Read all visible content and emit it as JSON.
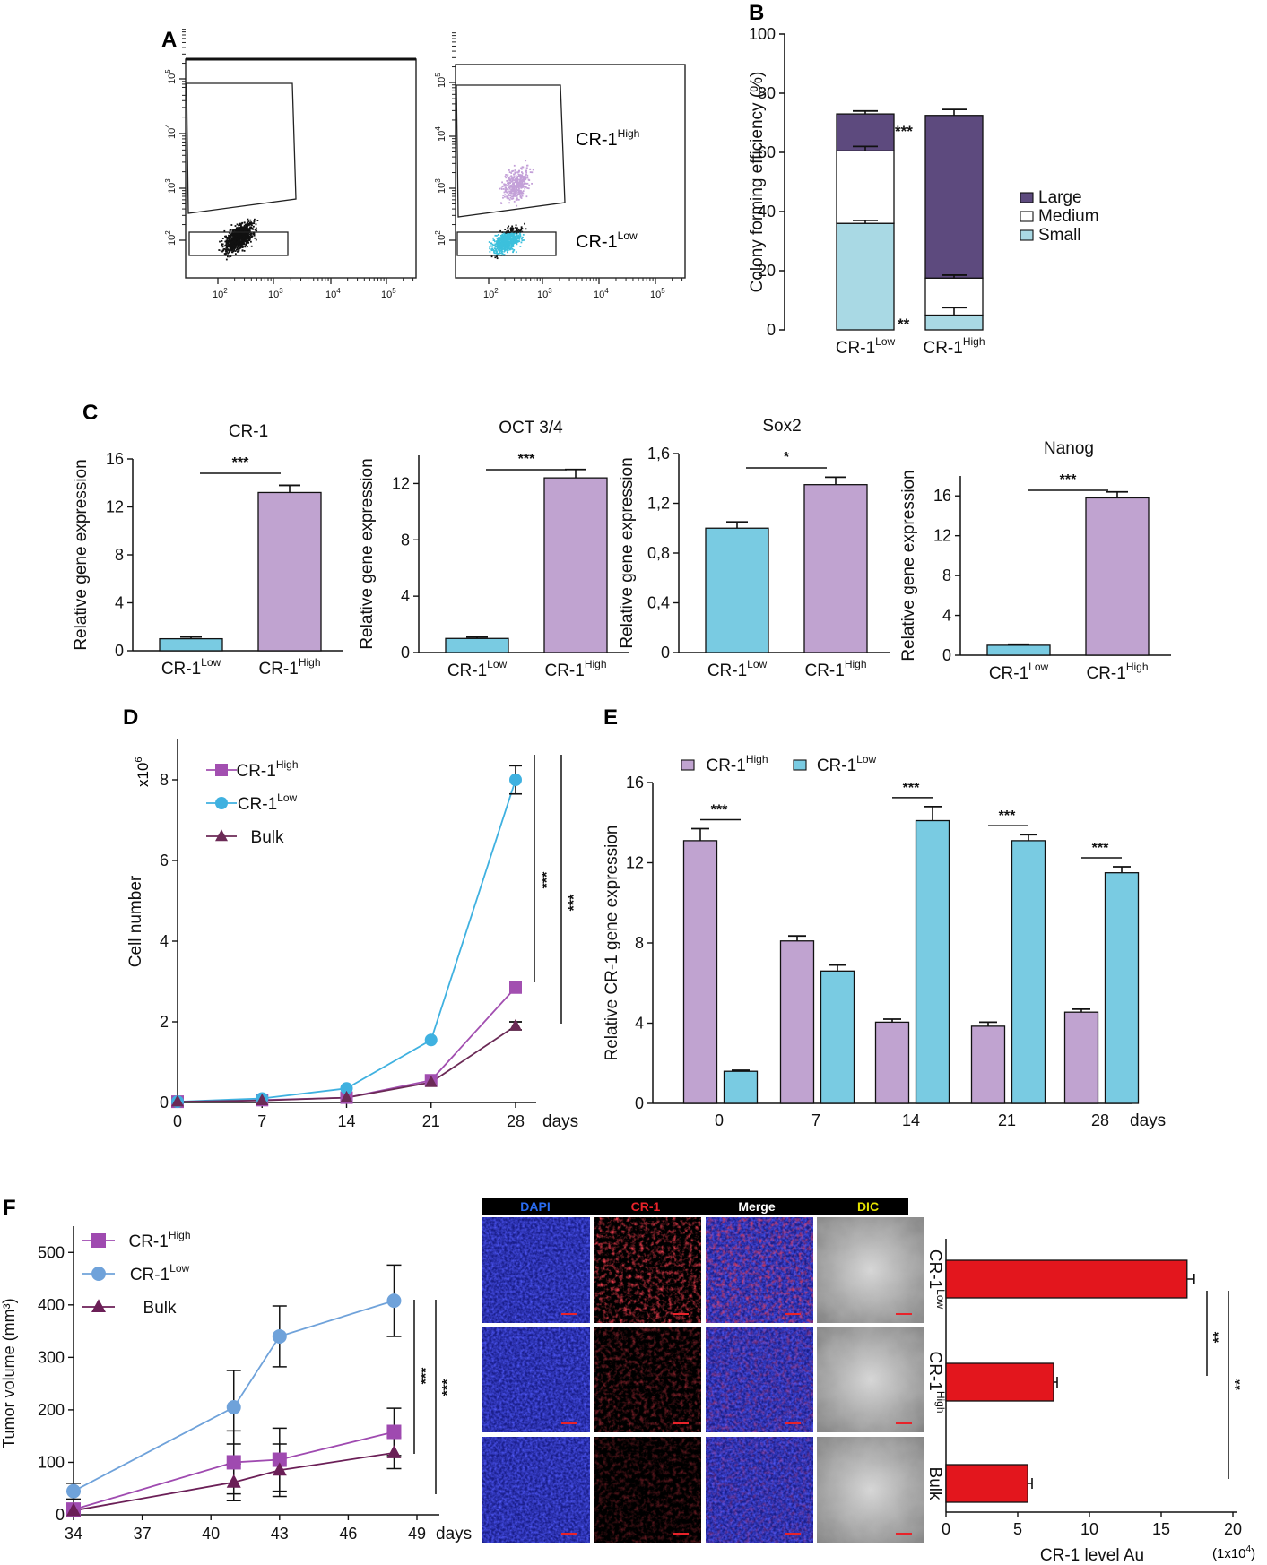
{
  "colors": {
    "low": "#79cbe2",
    "high": "#c0a3d0",
    "large": "#5d4a7e",
    "medium": "#ffffff",
    "small": "#a9d9e4",
    "line_high": "#a24fb0",
    "line_low": "#3fb1e0",
    "line_bulk": "#6b2a56",
    "f_low": "#6fa2da",
    "f_high": "#9f4ab0",
    "f_bulk": "#6b1f57",
    "red_bar": "#e3161d",
    "dapi": "#2a2fcf",
    "cr1": "#e0171d",
    "dic": "#e4e200"
  },
  "panels": {
    "A": {
      "label": "A",
      "gate_high": "CR-1",
      "gate_high_sup": "High",
      "gate_low": "CR-1",
      "gate_low_sup": "Low",
      "x_ticks": [
        "10",
        "10",
        "10",
        "10"
      ],
      "x_exps": [
        "2",
        "3",
        "4",
        "5"
      ],
      "y_ticks": [
        "10",
        "10",
        "10",
        "10"
      ],
      "y_exps": [
        "2",
        "3",
        "4",
        "5"
      ]
    },
    "B": {
      "label": "B"
    },
    "C": {
      "label": "C"
    },
    "D": {
      "label": "D",
      "multiplier": "x10",
      "multiplier_exp": "6"
    },
    "E": {
      "label": "E"
    },
    "F": {
      "label": "F",
      "image_headers": [
        "DAPI",
        "CR-1",
        "Merge",
        "DIC"
      ],
      "bar_multiplier": "(1x10",
      "bar_multiplier_exp": "4",
      "bar_multiplier_close": ")"
    }
  },
  "chart_data": [
    {
      "id": "B",
      "type": "bar",
      "stacked": true,
      "categories": [
        "CR-1Low",
        "CR-1High"
      ],
      "series": [
        {
          "name": "Small",
          "values": [
            36,
            5
          ]
        },
        {
          "name": "Medium",
          "values": [
            24.5,
            12.5
          ]
        },
        {
          "name": "Large",
          "values": [
            12.5,
            55
          ]
        }
      ],
      "error_tops": [
        [
          37,
          7.5
        ],
        [
          62,
          18.5
        ],
        [
          74,
          74.5
        ]
      ],
      "significance": [
        {
          "text": "***",
          "position": "right of CR-1Low Large"
        },
        {
          "text": "**",
          "position": "right of CR-1Low Small"
        }
      ],
      "ylabel": "Colony forming efficiency (%)",
      "ylim": [
        0,
        100
      ],
      "y_ticks": [
        "0",
        "20",
        "40",
        "60",
        "80",
        "100"
      ],
      "legend": [
        "Large",
        "Medium",
        "Small"
      ]
    },
    {
      "id": "C1",
      "type": "bar",
      "title": "CR-1",
      "categories": [
        "CR-1Low",
        "CR-1High"
      ],
      "values": [
        1,
        13.2
      ],
      "errors": [
        0.15,
        0.6
      ],
      "ylim": [
        0,
        16
      ],
      "y_ticks": [
        "0",
        "4",
        "8",
        "12",
        "16"
      ],
      "ylabel": "Relative gene expression",
      "significance": "***"
    },
    {
      "id": "C2",
      "type": "bar",
      "title": "OCT 3/4",
      "categories": [
        "CR-1Low",
        "CR-1High"
      ],
      "values": [
        1,
        12.4
      ],
      "errors": [
        0.1,
        0.6
      ],
      "ylim": [
        0,
        14
      ],
      "y_ticks": [
        "0",
        "4",
        "8",
        "12"
      ],
      "ylabel": "Relative gene expression",
      "significance": "***"
    },
    {
      "id": "C3",
      "type": "bar",
      "title": "Sox2",
      "categories": [
        "CR-1Low",
        "CR-1High"
      ],
      "values": [
        1,
        1.35
      ],
      "errors": [
        0.05,
        0.06
      ],
      "ylim": [
        0,
        1.6
      ],
      "y_ticks": [
        "0",
        "0,4",
        "0,8",
        "1,2",
        "1,6"
      ],
      "ylabel": "Relative gene expression",
      "significance": "*"
    },
    {
      "id": "C4",
      "type": "bar",
      "title": "Nanog",
      "categories": [
        "CR-1Low",
        "CR-1High"
      ],
      "values": [
        1,
        15.8
      ],
      "errors": [
        0.1,
        0.6
      ],
      "ylim": [
        0,
        18
      ],
      "y_ticks": [
        "0",
        "4",
        "8",
        "12",
        "16"
      ],
      "ylabel": "Relative gene expression",
      "significance": "***"
    },
    {
      "id": "D",
      "type": "line",
      "x": [
        0,
        7,
        14,
        21,
        28
      ],
      "x_ticks": [
        "0",
        "7",
        "14",
        "21",
        "28"
      ],
      "x_unit": "days",
      "ylabel": "Cell number",
      "ylim": [
        0,
        9
      ],
      "y_ticks": [
        "0",
        "2",
        "4",
        "6",
        "8"
      ],
      "series": [
        {
          "name": "CR-1High",
          "marker": "square",
          "values": [
            0.02,
            0.06,
            0.12,
            0.55,
            2.85
          ]
        },
        {
          "name": "CR-1Low",
          "marker": "circle",
          "values": [
            0.02,
            0.1,
            0.35,
            1.55,
            8.0
          ]
        },
        {
          "name": "Bulk",
          "marker": "triangle",
          "values": [
            0.02,
            0.05,
            0.12,
            0.5,
            1.9
          ]
        }
      ],
      "errors": {
        "CR-1Low": [
          0,
          0,
          0,
          0,
          0.35
        ],
        "Bulk": [
          0,
          0,
          0,
          0,
          0.1
        ]
      },
      "significance": [
        "***",
        "***"
      ]
    },
    {
      "id": "E",
      "type": "bar",
      "categories": [
        "0",
        "7",
        "14",
        "21",
        "28"
      ],
      "x_unit": "days",
      "series": [
        {
          "name": "CR-1High",
          "values": [
            13.1,
            8.1,
            4.05,
            3.85,
            4.55
          ]
        },
        {
          "name": "CR-1Low",
          "values": [
            1.6,
            6.6,
            14.1,
            13.1,
            11.5
          ]
        }
      ],
      "errors": [
        [
          0.6,
          0.25,
          0.15,
          0.2,
          0.15
        ],
        [
          0.05,
          0.3,
          0.7,
          0.3,
          0.3
        ]
      ],
      "ylabel": "Relative CR-1 gene expression",
      "ylim": [
        0,
        16
      ],
      "y_ticks": [
        "0",
        "4",
        "8",
        "12",
        "16"
      ],
      "significance": [
        "***",
        "",
        "***",
        "***",
        "***"
      ]
    },
    {
      "id": "F1",
      "type": "line",
      "x": [
        34,
        41,
        43,
        48
      ],
      "x_ticks": [
        "34",
        "37",
        "40",
        "43",
        "46",
        "49"
      ],
      "x_unit": "days",
      "xlim": [
        34,
        50
      ],
      "ylabel": "Tumor volume (mm³)",
      "ylim": [
        0,
        550
      ],
      "y_ticks": [
        "0",
        "100",
        "200",
        "300",
        "400",
        "500"
      ],
      "series": [
        {
          "name": "CR-1High",
          "marker": "square",
          "values": [
            10,
            100,
            105,
            158
          ]
        },
        {
          "name": "CR-1Low",
          "marker": "circle",
          "values": [
            45,
            205,
            340,
            408
          ]
        },
        {
          "name": "Bulk",
          "marker": "triangle",
          "values": [
            8,
            62,
            85,
            118
          ]
        }
      ],
      "errors": {
        "CR-1High": [
          10,
          60,
          60,
          45
        ],
        "CR-1Low": [
          15,
          70,
          58,
          68
        ],
        "Bulk": [
          8,
          35,
          50,
          30
        ]
      },
      "significance": [
        "***",
        "***"
      ]
    },
    {
      "id": "F2",
      "type": "bar",
      "orientation": "horizontal",
      "categories": [
        "CR-1Low",
        "CR-1High",
        "Bulk"
      ],
      "values": [
        16.8,
        7.5,
        5.7
      ],
      "errors": [
        0.5,
        0.25,
        0.3
      ],
      "xlabel": "CR-1 level Au",
      "xlim": [
        0,
        20
      ],
      "x_ticks": [
        "0",
        "5",
        "10",
        "15",
        "20"
      ],
      "significance": [
        "**",
        "**"
      ]
    }
  ]
}
